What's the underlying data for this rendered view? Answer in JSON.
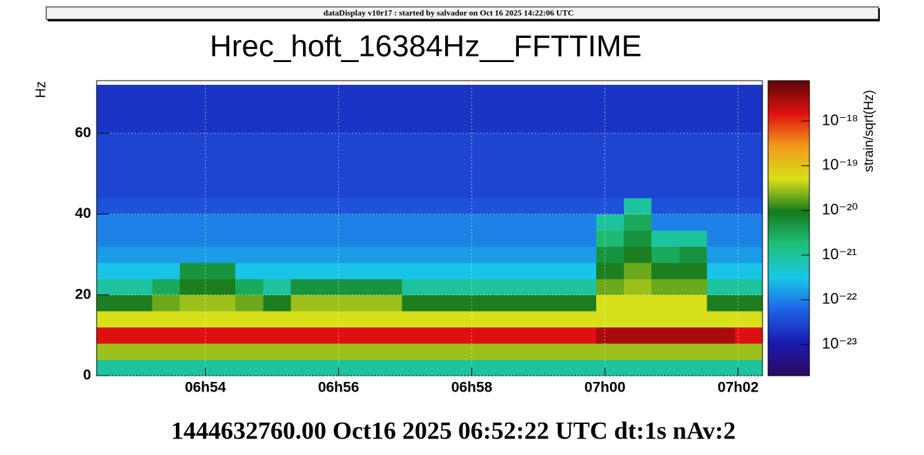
{
  "header": "dataDisplay v10r17 : started by salvador on Oct 16 2025 14:22:06 UTC",
  "footer": "1444632760.00 Oct16 2025 06:52:22 UTC dt:1s nAv:2",
  "chart_data": {
    "type": "heatmap",
    "title": "Hrec_hoft_16384Hz__FFTTIME",
    "y_label": "Hz",
    "z_label": "strain/sqrt(Hz)",
    "xlim": [
      24742,
      25342
    ],
    "xticks": [
      {
        "value": 24840,
        "label": "06h54"
      },
      {
        "value": 24960,
        "label": "06h56"
      },
      {
        "value": 25080,
        "label": "06h58"
      },
      {
        "value": 25200,
        "label": "07h00"
      },
      {
        "value": 25320,
        "label": "07h02"
      }
    ],
    "ylim": [
      0,
      73
    ],
    "yticks": [
      0,
      20,
      40,
      60
    ],
    "zlim": [
      2e-24,
      8e-18
    ],
    "zlog": true,
    "zticks": [
      {
        "value": 1e-23,
        "label": "10⁻²³"
      },
      {
        "value": 1e-22,
        "label": "10⁻²²"
      },
      {
        "value": 1e-21,
        "label": "10⁻²¹"
      },
      {
        "value": 1e-20,
        "label": "10⁻²⁰"
      },
      {
        "value": 1e-19,
        "label": "10⁻¹⁹"
      },
      {
        "value": 1e-18,
        "label": "10⁻¹⁸"
      }
    ],
    "colorscale": [
      "#2a0a5c",
      "#1a1ab0",
      "#1f62e6",
      "#19c8e6",
      "#1fc07a",
      "#147a1e",
      "#d8e01a",
      "#f09a1a",
      "#e01010",
      "#5c0606"
    ],
    "grid": true,
    "xbins": [
      24742,
      24767,
      24792,
      24817,
      24842,
      24867,
      24892,
      24917,
      24942,
      24967,
      24992,
      25017,
      25042,
      25067,
      25092,
      25117,
      25142,
      25167,
      25192,
      25217,
      25242,
      25267,
      25292,
      25317,
      25342
    ],
    "ybins": [
      0,
      4,
      8,
      12,
      16,
      20,
      24,
      28,
      32,
      36,
      40,
      44,
      48,
      52,
      56,
      60,
      64,
      68,
      72
    ],
    "z": [
      [
        1e-21,
        1e-21,
        1e-21,
        1e-21,
        1e-21,
        1e-21,
        1e-21,
        1e-21,
        1e-21,
        1e-21,
        1e-21,
        1e-21,
        1e-21,
        1e-21,
        1e-21,
        1e-21,
        1e-21,
        1e-21,
        1e-21,
        1e-21,
        1e-21,
        1e-21,
        1e-21,
        1e-21
      ],
      [
        3e-20,
        3e-20,
        3e-20,
        3e-20,
        3e-20,
        3e-20,
        3e-20,
        3e-20,
        3e-20,
        3e-20,
        3e-20,
        3e-20,
        3e-20,
        3e-20,
        3e-20,
        3e-20,
        3e-20,
        3e-20,
        3e-20,
        3e-20,
        3e-20,
        3e-20,
        3e-20,
        3e-20
      ],
      [
        1.5e-18,
        1.5e-18,
        1.5e-18,
        1.5e-18,
        1.5e-18,
        1.5e-18,
        1.5e-18,
        1.5e-18,
        1.5e-18,
        1.5e-18,
        1.5e-18,
        1.5e-18,
        1.5e-18,
        1.5e-18,
        1.5e-18,
        1.5e-18,
        1.5e-18,
        1.5e-18,
        3e-18,
        3e-18,
        3e-18,
        3e-18,
        3e-18,
        1.5e-18
      ],
      [
        5e-20,
        5e-20,
        5e-20,
        5e-20,
        5e-20,
        5e-20,
        5e-20,
        5e-20,
        5e-20,
        5e-20,
        5e-20,
        5e-20,
        5e-20,
        5e-20,
        5e-20,
        5e-20,
        5e-20,
        5e-20,
        5e-20,
        5e-20,
        5e-20,
        5e-20,
        5e-20,
        5e-20
      ],
      [
        1e-20,
        1e-20,
        2e-20,
        3e-20,
        3e-20,
        2e-20,
        1e-20,
        3e-20,
        3e-20,
        3e-20,
        3e-20,
        1e-20,
        1e-20,
        1e-20,
        1e-20,
        1e-20,
        1e-20,
        1e-20,
        5e-20,
        5e-20,
        5e-20,
        5e-20,
        1e-20,
        1e-20
      ],
      [
        1e-21,
        1e-21,
        3e-21,
        1e-20,
        1e-20,
        3e-21,
        1e-21,
        5e-21,
        5e-21,
        5e-21,
        5e-21,
        1e-21,
        1e-21,
        1e-21,
        1e-21,
        1e-21,
        1e-21,
        1e-21,
        2e-20,
        3e-20,
        2e-20,
        2e-20,
        1e-21,
        1e-21
      ],
      [
        3e-22,
        3e-22,
        3e-22,
        5e-21,
        5e-21,
        3e-22,
        3e-22,
        3e-22,
        3e-22,
        3e-22,
        3e-22,
        3e-22,
        3e-22,
        3e-22,
        3e-22,
        3e-22,
        3e-22,
        3e-22,
        1e-20,
        2e-20,
        1e-20,
        1e-20,
        3e-22,
        3e-22
      ],
      [
        1.5e-22,
        1.5e-22,
        1.5e-22,
        1.5e-22,
        1.5e-22,
        1.5e-22,
        1.5e-22,
        1.5e-22,
        1.5e-22,
        1.5e-22,
        1.5e-22,
        1.5e-22,
        1.5e-22,
        1.5e-22,
        1.5e-22,
        1.5e-22,
        1.5e-22,
        1.5e-22,
        5e-21,
        1e-20,
        3e-21,
        5e-21,
        1.5e-22,
        1.5e-22
      ],
      [
        1e-22,
        1e-22,
        1e-22,
        1e-22,
        1e-22,
        1e-22,
        1e-22,
        1e-22,
        1e-22,
        1e-22,
        1e-22,
        1e-22,
        1e-22,
        1e-22,
        1e-22,
        1e-22,
        1e-22,
        1e-22,
        2e-21,
        5e-21,
        1e-21,
        1e-21,
        1e-22,
        1e-22
      ],
      [
        1e-22,
        1e-22,
        1e-22,
        1e-22,
        1e-22,
        1e-22,
        1e-22,
        1e-22,
        1e-22,
        1e-22,
        1e-22,
        1e-22,
        1e-22,
        1e-22,
        1e-22,
        1e-22,
        1e-22,
        1e-22,
        1e-21,
        3e-21,
        1e-22,
        1e-22,
        1e-22,
        1e-22
      ],
      [
        4e-23,
        4e-23,
        4e-23,
        4e-23,
        4e-23,
        4e-23,
        4e-23,
        4e-23,
        4e-23,
        4e-23,
        4e-23,
        4e-23,
        4e-23,
        4e-23,
        4e-23,
        4e-23,
        4e-23,
        4e-23,
        4e-23,
        1e-21,
        4e-23,
        4e-23,
        4e-23,
        4e-23
      ],
      [
        3e-23,
        3e-23,
        3e-23,
        3e-23,
        3e-23,
        3e-23,
        3e-23,
        3e-23,
        3e-23,
        3e-23,
        3e-23,
        3e-23,
        3e-23,
        3e-23,
        3e-23,
        3e-23,
        3e-23,
        3e-23,
        3e-23,
        3e-23,
        3e-23,
        3e-23,
        3e-23,
        3e-23
      ],
      [
        3e-23,
        3e-23,
        3e-23,
        3e-23,
        3e-23,
        3e-23,
        3e-23,
        3e-23,
        3e-23,
        3e-23,
        3e-23,
        3e-23,
        3e-23,
        3e-23,
        3e-23,
        3e-23,
        3e-23,
        3e-23,
        3e-23,
        3e-23,
        3e-23,
        3e-23,
        3e-23,
        3e-23
      ],
      [
        3e-23,
        3e-23,
        3e-23,
        3e-23,
        3e-23,
        3e-23,
        3e-23,
        3e-23,
        3e-23,
        3e-23,
        3e-23,
        3e-23,
        3e-23,
        3e-23,
        3e-23,
        3e-23,
        3e-23,
        3e-23,
        3e-23,
        3e-23,
        3e-23,
        3e-23,
        3e-23,
        3e-23
      ],
      [
        3e-23,
        3e-23,
        3e-23,
        3e-23,
        3e-23,
        3e-23,
        3e-23,
        3e-23,
        3e-23,
        3e-23,
        3e-23,
        3e-23,
        3e-23,
        3e-23,
        3e-23,
        3e-23,
        3e-23,
        3e-23,
        3e-23,
        3e-23,
        3e-23,
        3e-23,
        3e-23,
        3e-23
      ],
      [
        2e-23,
        2e-23,
        2e-23,
        2e-23,
        2e-23,
        2e-23,
        2e-23,
        2e-23,
        2e-23,
        2e-23,
        2e-23,
        2e-23,
        2e-23,
        2e-23,
        2e-23,
        2e-23,
        2e-23,
        2e-23,
        2e-23,
        2e-23,
        2e-23,
        2e-23,
        2e-23,
        2e-23
      ],
      [
        2e-23,
        2e-23,
        2e-23,
        2e-23,
        2e-23,
        2e-23,
        2e-23,
        2e-23,
        2e-23,
        2e-23,
        2e-23,
        2e-23,
        2e-23,
        2e-23,
        2e-23,
        2e-23,
        2e-23,
        2e-23,
        2e-23,
        2e-23,
        2e-23,
        2e-23,
        2e-23,
        2e-23
      ],
      [
        2e-23,
        2e-23,
        2e-23,
        2e-23,
        2e-23,
        2e-23,
        2e-23,
        2e-23,
        2e-23,
        2e-23,
        2e-23,
        2e-23,
        2e-23,
        2e-23,
        2e-23,
        2e-23,
        2e-23,
        2e-23,
        2e-23,
        2e-23,
        2e-23,
        2e-23,
        2e-23,
        2e-23
      ]
    ]
  }
}
